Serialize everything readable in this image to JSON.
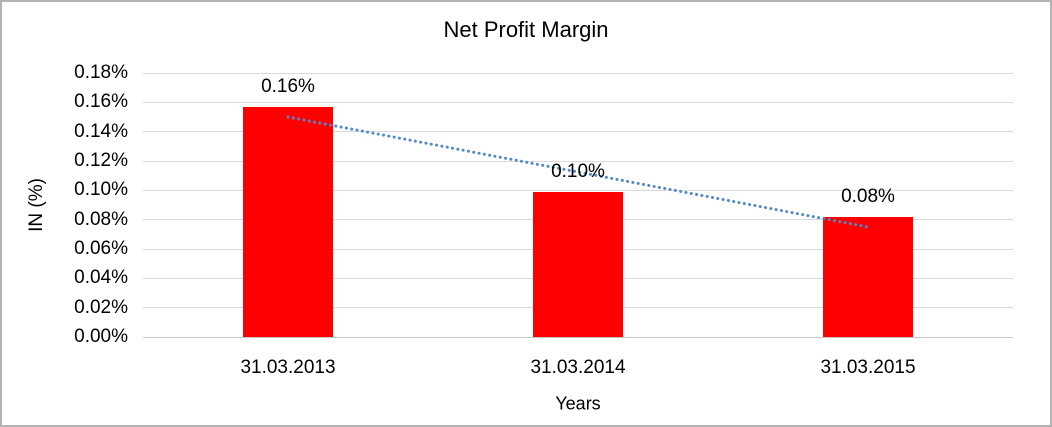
{
  "frame": {
    "background": "#FFFFFF",
    "border_color": "#B3B3B3"
  },
  "chart_data": {
    "type": "bar",
    "title": "Net Profit Margin",
    "xlabel": "Years",
    "ylabel": "IN (%)",
    "categories": [
      "31.03.2013",
      "31.03.2014",
      "31.03.2015"
    ],
    "values": [
      0.157,
      0.099,
      0.082
    ],
    "data_labels": [
      "0.16%",
      "0.10%",
      "0.08%"
    ],
    "ylim": [
      0,
      0.18
    ],
    "ytick_step": 0.02,
    "ytick_labels": [
      "0.18%",
      "0.16%",
      "0.14%",
      "0.12%",
      "0.10%",
      "0.08%",
      "0.06%",
      "0.04%",
      "0.02%",
      "0.00%"
    ],
    "grid": true,
    "legend": "none",
    "bar_color": "#FF0000",
    "gridline_color": "#D9D9D9",
    "axis_line_color": "#C6C6C6",
    "text_color": "#000000",
    "trendline": {
      "type": "linear",
      "style": "dotted",
      "color": "#5289C7",
      "start_value": 0.15,
      "end_value": 0.075
    }
  }
}
